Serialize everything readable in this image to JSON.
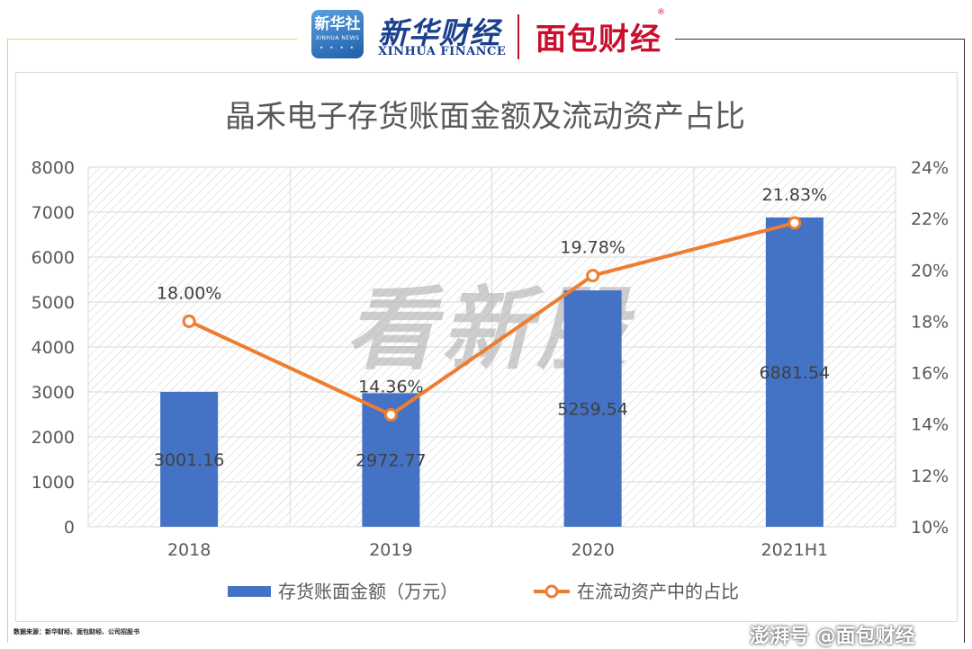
{
  "header": {
    "xinhua_logo_big": "新华社",
    "xinhua_logo_small": "XINHUA NEWS",
    "xinhua_finance_cn": "新华财经",
    "xinhua_finance_en": "XINHUA FINANCE",
    "mianbao_logo": "面包财经",
    "registered_mark": "®"
  },
  "chart_data": {
    "type": "bar",
    "title": "晶禾电子存货账面金额及流动资产占比",
    "categories": [
      "2018",
      "2019",
      "2020",
      "2021H1"
    ],
    "series": [
      {
        "name": "存货账面金额（万元）",
        "type": "bar",
        "axis": "left",
        "values": [
          3001.16,
          2972.77,
          5259.54,
          6881.54
        ],
        "labels": [
          "3001.16",
          "2972.77",
          "5259.54",
          "6881.54"
        ],
        "color": "#4472c4"
      },
      {
        "name": "在流动资产中的占比",
        "type": "line",
        "axis": "right",
        "values": [
          18.0,
          14.36,
          19.78,
          21.83
        ],
        "labels": [
          "18.00%",
          "14.36%",
          "19.78%",
          "21.83%"
        ],
        "color": "#ed7d31"
      }
    ],
    "y_left": {
      "min": 0,
      "max": 8000,
      "ticks": [
        "0",
        "1000",
        "2000",
        "3000",
        "4000",
        "5000",
        "6000",
        "7000",
        "8000"
      ]
    },
    "y_right": {
      "min": 10,
      "max": 24,
      "ticks": [
        "10%",
        "12%",
        "14%",
        "16%",
        "18%",
        "20%",
        "22%",
        "24%"
      ]
    },
    "grid": true,
    "legend_position": "bottom"
  },
  "watermark_center": "看新股",
  "source": "数据来源：新华财经、面包财经、公司招股书",
  "watermark_bottom": "澎湃号 @面包财经"
}
